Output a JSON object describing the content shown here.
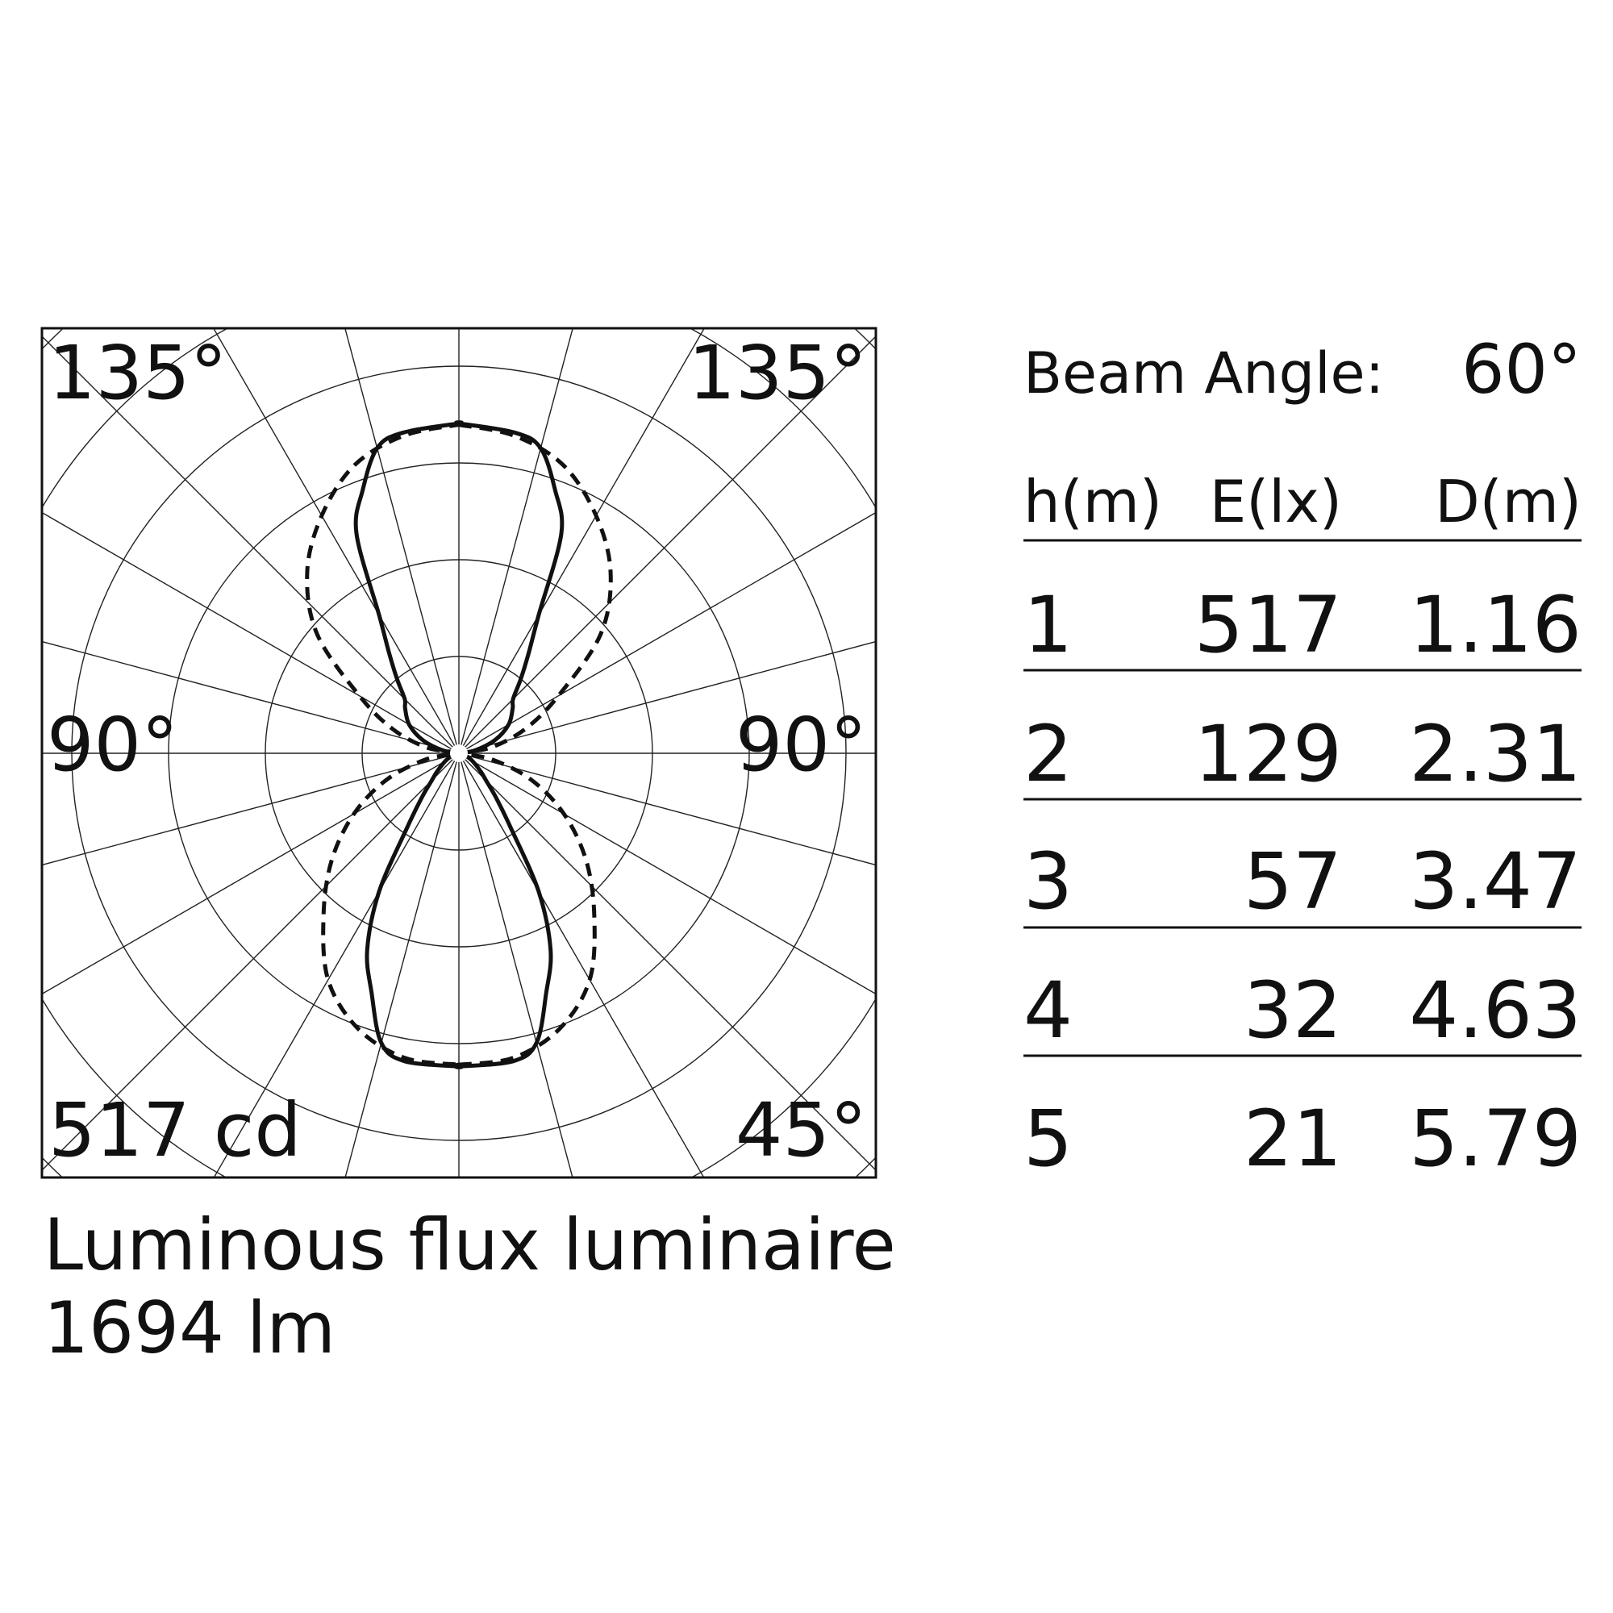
{
  "chart_data": {
    "type": "polar",
    "angle_unit": "deg",
    "angle_labels": {
      "top_left": "135°",
      "top_right": "135°",
      "left": "90°",
      "right": "90°",
      "bottom_right": "45°"
    },
    "scale_label": "517 cd",
    "max_cd": 517,
    "radial_line_step_deg": 15,
    "series": [
      {
        "style": "solid",
        "points": [
          [
            0,
            491
          ],
          [
            10,
            490
          ],
          [
            15,
            470
          ],
          [
            20,
            400
          ],
          [
            25,
            340
          ],
          [
            30,
            250
          ],
          [
            35,
            140
          ],
          [
            40,
            90
          ],
          [
            45,
            60
          ],
          [
            50,
            45
          ],
          [
            60,
            25
          ],
          [
            70,
            12
          ],
          [
            80,
            5
          ],
          [
            90,
            0
          ],
          [
            100,
            25
          ],
          [
            110,
            60
          ],
          [
            120,
            90
          ],
          [
            130,
            110
          ],
          [
            135,
            120
          ],
          [
            140,
            150
          ],
          [
            145,
            190
          ],
          [
            150,
            250
          ],
          [
            155,
            380
          ],
          [
            160,
            440
          ],
          [
            165,
            495
          ],
          [
            170,
            510
          ],
          [
            180,
            517
          ]
        ]
      },
      {
        "style": "dashed",
        "points": [
          [
            0,
            488
          ],
          [
            10,
            485
          ],
          [
            20,
            460
          ],
          [
            30,
            410
          ],
          [
            40,
            330
          ],
          [
            50,
            260
          ],
          [
            60,
            190
          ],
          [
            70,
            120
          ],
          [
            80,
            50
          ],
          [
            90,
            0
          ],
          [
            100,
            50
          ],
          [
            110,
            110
          ],
          [
            120,
            180
          ],
          [
            130,
            290
          ],
          [
            140,
            370
          ],
          [
            150,
            430
          ],
          [
            160,
            480
          ],
          [
            170,
            505
          ],
          [
            180,
            515
          ]
        ]
      }
    ]
  },
  "flux": {
    "title": "Luminous flux luminaire",
    "value": "1694 lm"
  },
  "beam": {
    "label": "Beam Angle:",
    "value": "60°"
  },
  "table": {
    "headers": [
      "h(m)",
      "E(lx)",
      "D(m)"
    ],
    "rows": [
      [
        "1",
        "517",
        "1.16"
      ],
      [
        "2",
        "129",
        "2.31"
      ],
      [
        "3",
        "57",
        "3.47"
      ],
      [
        "4",
        "32",
        "4.63"
      ],
      [
        "5",
        "21",
        "5.79"
      ]
    ]
  }
}
